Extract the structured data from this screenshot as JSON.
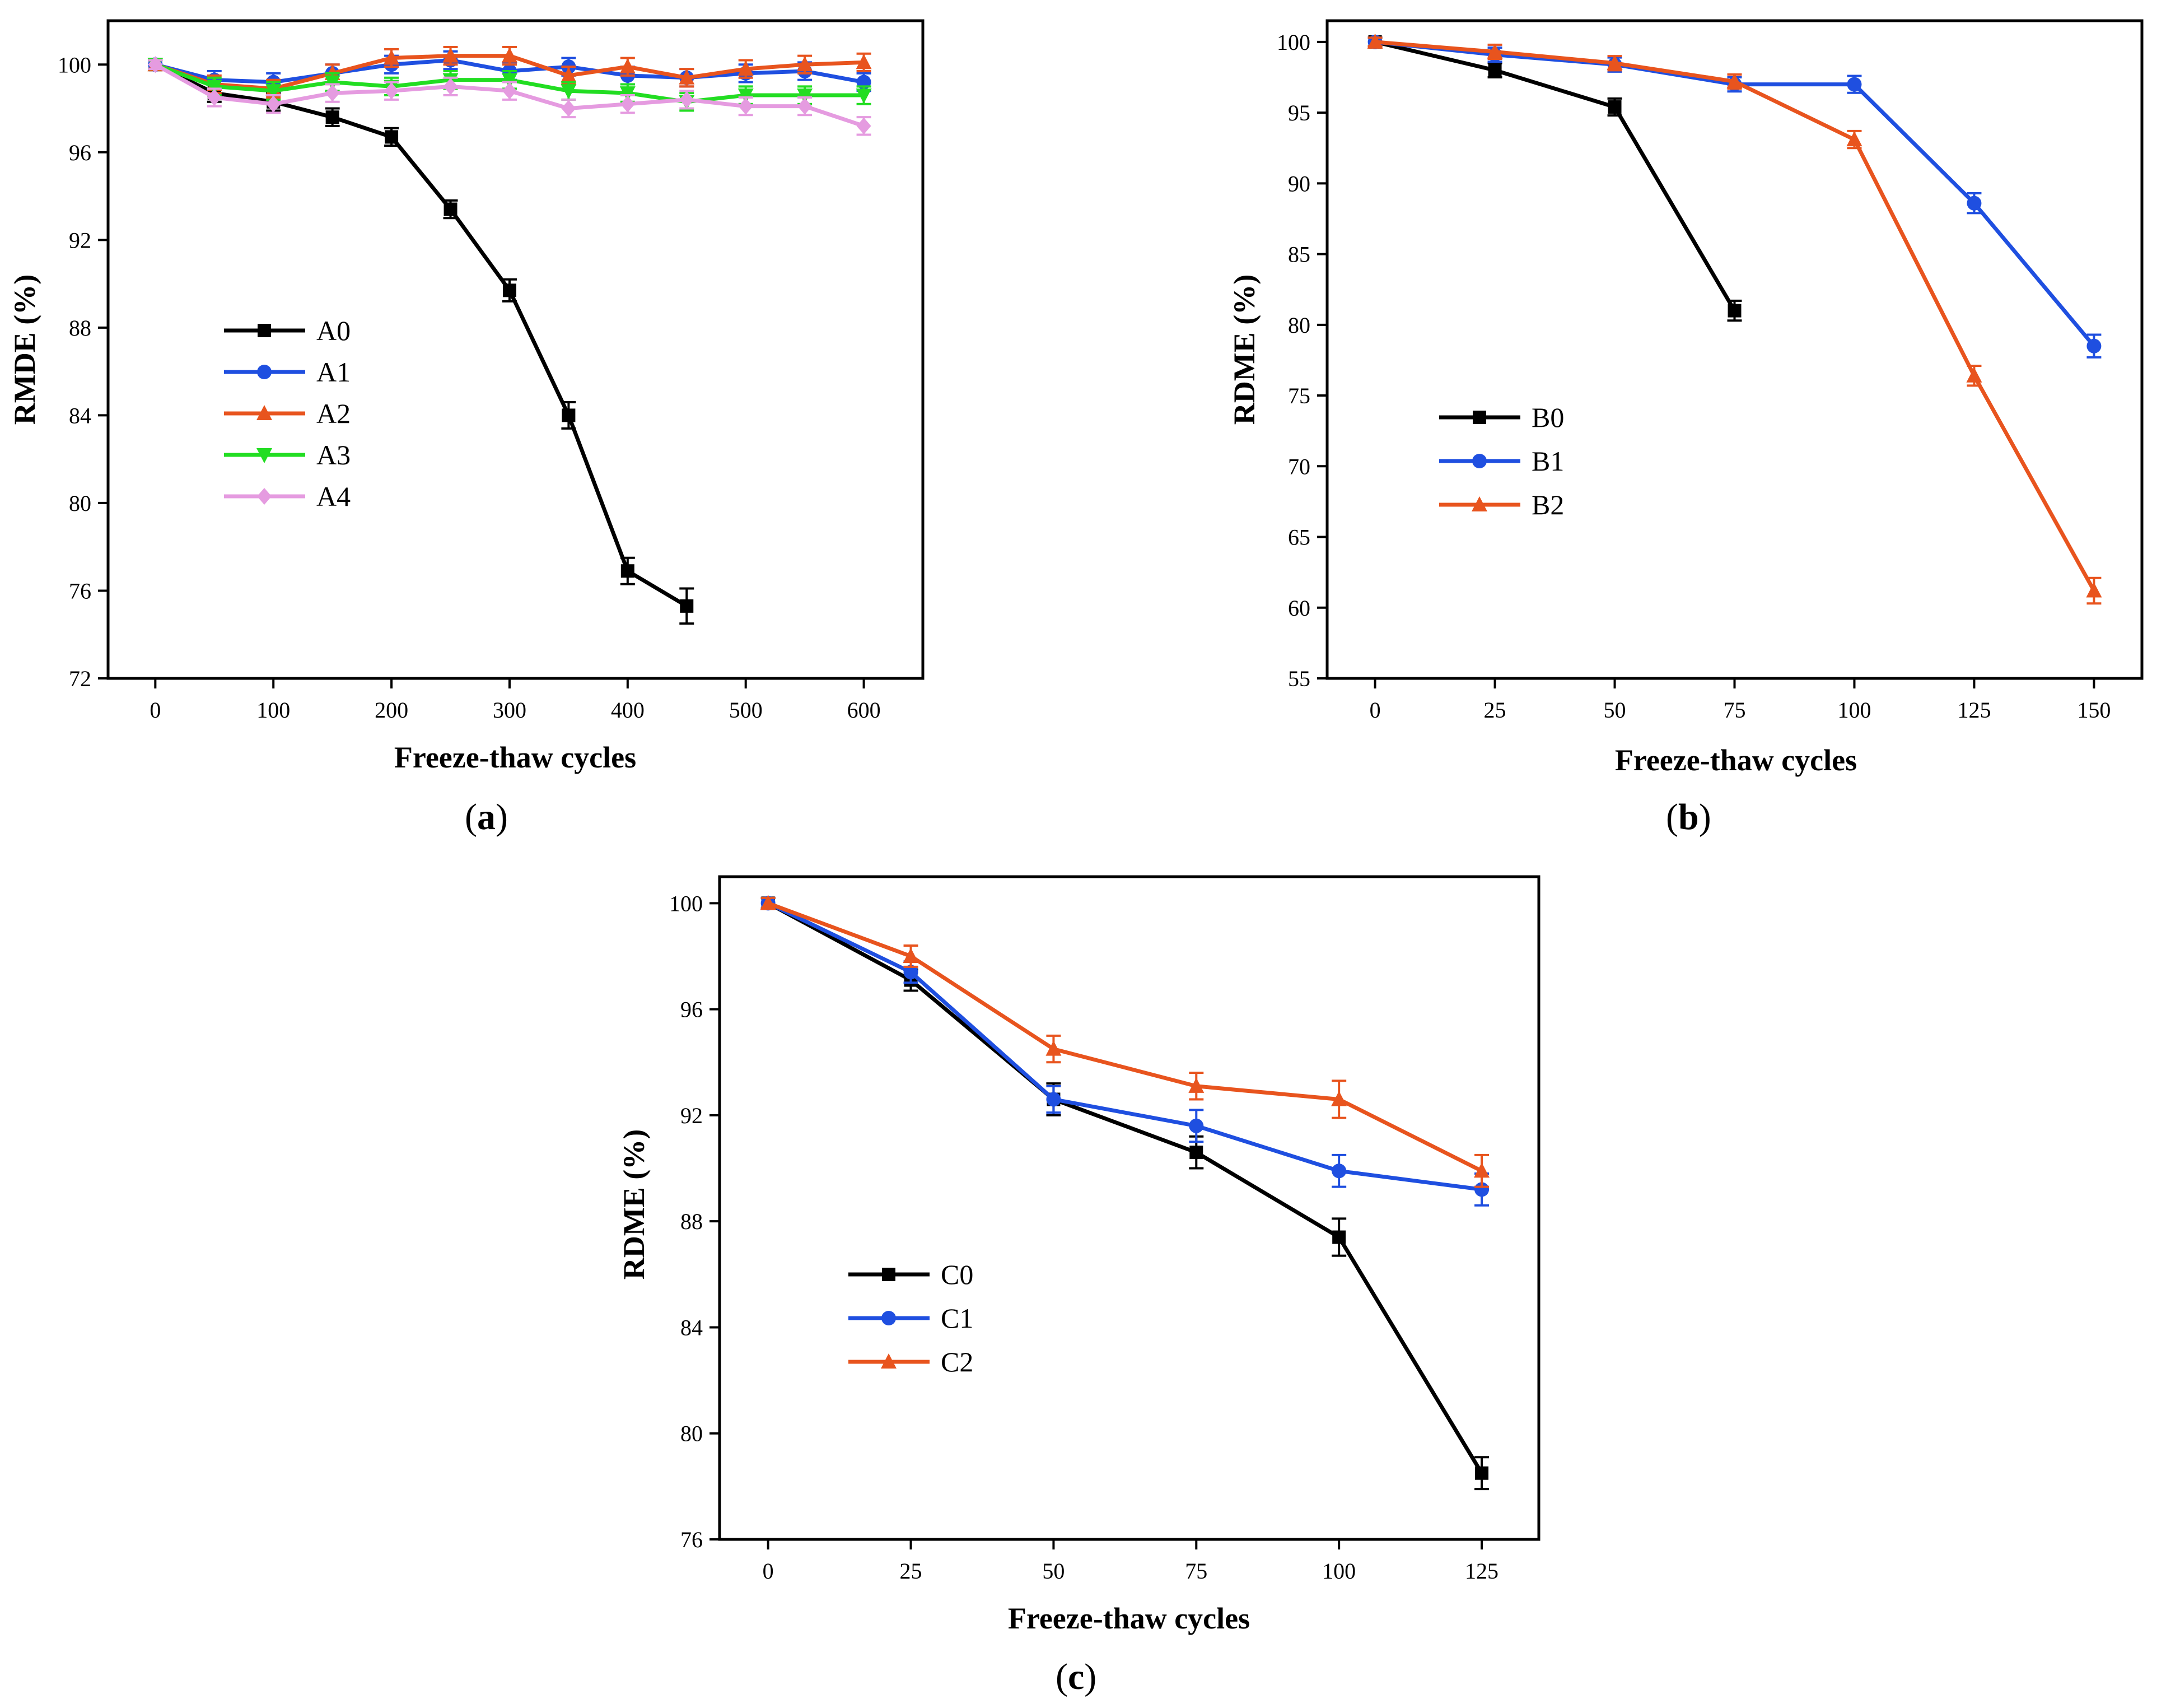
{
  "chart_data": [
    {
      "panel": "(a)",
      "panel_letter": "a",
      "type": "line",
      "xlabel": "Freeze-thaw cycles",
      "ylabel": "RMDE (%)",
      "xlim": [
        -40,
        650
      ],
      "ylim": [
        72,
        102
      ],
      "xticks": [
        0,
        100,
        200,
        300,
        400,
        500,
        600
      ],
      "xticklabels": [
        "0",
        "100",
        "200",
        "300",
        "400",
        "500",
        "600"
      ],
      "yticks": [
        72,
        76,
        80,
        84,
        88,
        92,
        96,
        100
      ],
      "yticklabels": [
        "72",
        "76",
        "80",
        "84",
        "88",
        "92",
        "96",
        "100"
      ],
      "legend_position": "center-left",
      "series": [
        {
          "name": "A0",
          "color": "#000000",
          "marker": "square",
          "x": [
            0,
            50,
            100,
            150,
            200,
            250,
            300,
            350,
            400,
            450
          ],
          "y": [
            100,
            98.7,
            98.3,
            97.6,
            96.7,
            93.4,
            89.7,
            84.0,
            76.9,
            75.3
          ],
          "err": [
            0.2,
            0.4,
            0.4,
            0.4,
            0.4,
            0.4,
            0.5,
            0.6,
            0.6,
            0.8
          ]
        },
        {
          "name": "A1",
          "color": "#1f4fe0",
          "marker": "circle",
          "x": [
            0,
            50,
            100,
            150,
            200,
            250,
            300,
            350,
            400,
            450,
            500,
            550,
            600
          ],
          "y": [
            100,
            99.3,
            99.2,
            99.6,
            100.0,
            100.2,
            99.7,
            99.9,
            99.5,
            99.4,
            99.6,
            99.7,
            99.2
          ],
          "err": [
            0.2,
            0.4,
            0.4,
            0.4,
            0.4,
            0.4,
            0.4,
            0.4,
            0.4,
            0.4,
            0.4,
            0.4,
            0.4
          ]
        },
        {
          "name": "A2",
          "color": "#e8541e",
          "marker": "triangle",
          "x": [
            0,
            50,
            100,
            150,
            200,
            250,
            300,
            350,
            400,
            450,
            500,
            550,
            600
          ],
          "y": [
            100,
            99.1,
            98.9,
            99.6,
            100.3,
            100.4,
            100.4,
            99.5,
            99.9,
            99.4,
            99.8,
            100.0,
            100.1
          ],
          "err": [
            0.2,
            0.4,
            0.4,
            0.4,
            0.4,
            0.4,
            0.4,
            0.4,
            0.4,
            0.4,
            0.4,
            0.4,
            0.4
          ]
        },
        {
          "name": "A3",
          "color": "#22dd22",
          "marker": "triangle-down",
          "x": [
            0,
            50,
            100,
            150,
            200,
            250,
            300,
            350,
            400,
            450,
            500,
            550,
            600
          ],
          "y": [
            100,
            99.0,
            98.8,
            99.2,
            99.0,
            99.3,
            99.3,
            98.8,
            98.7,
            98.3,
            98.6,
            98.6,
            98.6
          ],
          "err": [
            0.2,
            0.4,
            0.4,
            0.4,
            0.4,
            0.4,
            0.4,
            0.4,
            0.4,
            0.4,
            0.4,
            0.4,
            0.4
          ]
        },
        {
          "name": "A4",
          "color": "#e59be0",
          "marker": "diamond",
          "x": [
            0,
            50,
            100,
            150,
            200,
            250,
            300,
            350,
            400,
            450,
            500,
            550,
            600
          ],
          "y": [
            100,
            98.5,
            98.2,
            98.7,
            98.8,
            99.0,
            98.8,
            98.0,
            98.2,
            98.4,
            98.1,
            98.1,
            97.2
          ],
          "err": [
            0.2,
            0.4,
            0.4,
            0.4,
            0.4,
            0.4,
            0.4,
            0.4,
            0.4,
            0.4,
            0.4,
            0.4,
            0.4
          ]
        }
      ]
    },
    {
      "panel": "(b)",
      "panel_letter": "b",
      "type": "line",
      "xlabel": "Freeze-thaw cycles",
      "ylabel": "RDME (%)",
      "xlim": [
        -10,
        160
      ],
      "ylim": [
        55,
        101.5
      ],
      "xticks": [
        0,
        25,
        50,
        75,
        100,
        125,
        150
      ],
      "xticklabels": [
        "0",
        "25",
        "50",
        "75",
        "100",
        "125",
        "150"
      ],
      "yticks": [
        55,
        60,
        65,
        70,
        75,
        80,
        85,
        90,
        95,
        100
      ],
      "yticklabels": [
        "55",
        "60",
        "65",
        "70",
        "75",
        "80",
        "85",
        "90",
        "95",
        "100"
      ],
      "legend_position": "center-left",
      "series": [
        {
          "name": "B0",
          "color": "#000000",
          "marker": "square",
          "x": [
            0,
            25,
            50,
            75
          ],
          "y": [
            100,
            98.0,
            95.4,
            81.0
          ],
          "err": [
            0.3,
            0.5,
            0.6,
            0.7
          ]
        },
        {
          "name": "B1",
          "color": "#1f4fe0",
          "marker": "circle",
          "x": [
            0,
            25,
            50,
            75,
            100,
            125,
            150
          ],
          "y": [
            100,
            99.1,
            98.4,
            97.0,
            97.0,
            88.6,
            78.5
          ],
          "err": [
            0.3,
            0.5,
            0.5,
            0.5,
            0.6,
            0.7,
            0.8
          ]
        },
        {
          "name": "B2",
          "color": "#e8541e",
          "marker": "triangle",
          "x": [
            0,
            25,
            50,
            75,
            100,
            125,
            150
          ],
          "y": [
            100,
            99.3,
            98.5,
            97.2,
            93.1,
            76.4,
            61.2
          ],
          "err": [
            0.3,
            0.5,
            0.5,
            0.5,
            0.6,
            0.7,
            0.9
          ]
        }
      ]
    },
    {
      "panel": "(c)",
      "panel_letter": "c",
      "type": "line",
      "xlabel": "Freeze-thaw cycles",
      "ylabel": "RDME (%)",
      "xlim": [
        -8.5,
        135
      ],
      "ylim": [
        76,
        101
      ],
      "xticks": [
        0,
        25,
        50,
        75,
        100,
        125
      ],
      "xticklabels": [
        "0",
        "25",
        "50",
        "75",
        "100",
        "125"
      ],
      "yticks": [
        76,
        80,
        84,
        88,
        92,
        96,
        100
      ],
      "yticklabels": [
        "76",
        "80",
        "84",
        "88",
        "92",
        "96",
        "100"
      ],
      "legend_position": "center-left",
      "series": [
        {
          "name": "C0",
          "color": "#000000",
          "marker": "square",
          "x": [
            0,
            25,
            50,
            75,
            100,
            125
          ],
          "y": [
            100,
            97.1,
            92.6,
            90.6,
            87.4,
            78.5
          ],
          "err": [
            0.2,
            0.4,
            0.6,
            0.6,
            0.7,
            0.6
          ]
        },
        {
          "name": "C1",
          "color": "#1f4fe0",
          "marker": "circle",
          "x": [
            0,
            25,
            50,
            75,
            100,
            125
          ],
          "y": [
            100,
            97.4,
            92.6,
            91.6,
            89.9,
            89.2
          ],
          "err": [
            0.2,
            0.4,
            0.5,
            0.6,
            0.6,
            0.6
          ]
        },
        {
          "name": "C2",
          "color": "#e8541e",
          "marker": "triangle",
          "x": [
            0,
            25,
            50,
            75,
            100,
            125
          ],
          "y": [
            100,
            98.0,
            94.5,
            93.1,
            92.6,
            89.9
          ],
          "err": [
            0.2,
            0.4,
            0.5,
            0.5,
            0.7,
            0.6
          ]
        }
      ]
    }
  ]
}
